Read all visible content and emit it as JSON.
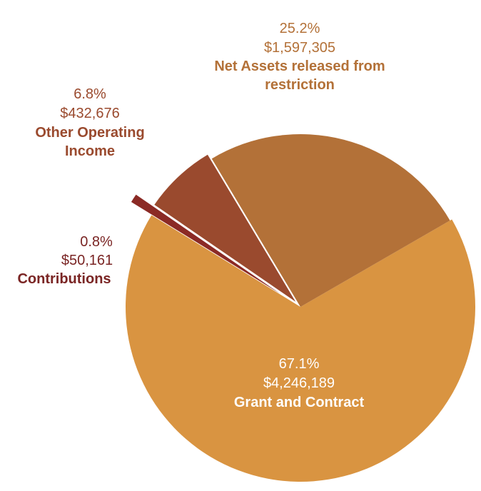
{
  "chart_data": {
    "type": "pie",
    "title": "",
    "legend": "none",
    "slices": [
      {
        "name": "Grant and Contract",
        "percent_label": "67.1%",
        "amount_label": "$4,246,189",
        "value": 4246189,
        "color": "#D99441",
        "label_color": "#FFFFFF",
        "exploded": false
      },
      {
        "name": "Contributions",
        "percent_label": "0.8%",
        "amount_label": "$50,161",
        "value": 50161,
        "color": "#8B2A25",
        "label_color": "#7A2524",
        "exploded": true
      },
      {
        "name": "Other Operating Income",
        "name_lines": [
          "Other Operating",
          "Income"
        ],
        "percent_label": "6.8%",
        "amount_label": "$432,676",
        "value": 432676,
        "color": "#9A4A2E",
        "label_color": "#9A4A2E",
        "exploded": true
      },
      {
        "name": "Net Assets released from restriction",
        "name_lines": [
          "Net Assets released from",
          "restriction"
        ],
        "percent_label": "25.2%",
        "amount_label": "$1,597,305",
        "value": 1597305,
        "color": "#B37138",
        "label_color": "#B37138",
        "exploded": true
      }
    ]
  }
}
